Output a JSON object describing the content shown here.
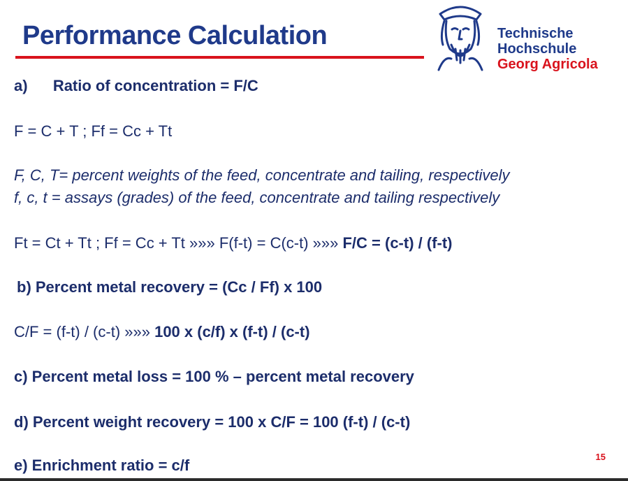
{
  "title": "Performance Calculation",
  "logo": {
    "line1": "Technische",
    "line2": "Hochschule",
    "line3": "Georg Agricola"
  },
  "lines": {
    "a_label": "a)",
    "a_text": "Ratio of concentration = F/C",
    "eq1": "F = C + T ; Ff = Cc + Tt",
    "def1": "F, C, T= percent weights of the feed, concentrate and tailing, respectively",
    "def2": "f, c, t  = assays (grades) of the feed, concentrate and tailing respectively",
    "eq2_plain": "Ft = Ct + Tt ; Ff = Cc + Tt »»» F(f-t) =  C(c-t) »»» ",
    "eq2_bold": "F/C = (c-t) / (f-t)",
    "b_text": "b) Percent metal recovery = (Cc / Ff) x 100",
    "eq3_plain": "C/F = (f-t) / (c-t) »»» ",
    "eq3_bold": "100 x (c/f) x (f-t) / (c-t)",
    "c_text": "c) Percent metal loss = 100 % – percent metal recovery",
    "d_text": "d) Percent weight recovery = 100 x C/F = 100 (f-t) / (c-t)",
    "e_text": "e) Enrichment ratio = c/f"
  },
  "page_number": "15",
  "colors": {
    "title_blue": "#1f3a8a",
    "text_navy": "#1c2d6b",
    "accent_red": "#d9131d"
  }
}
